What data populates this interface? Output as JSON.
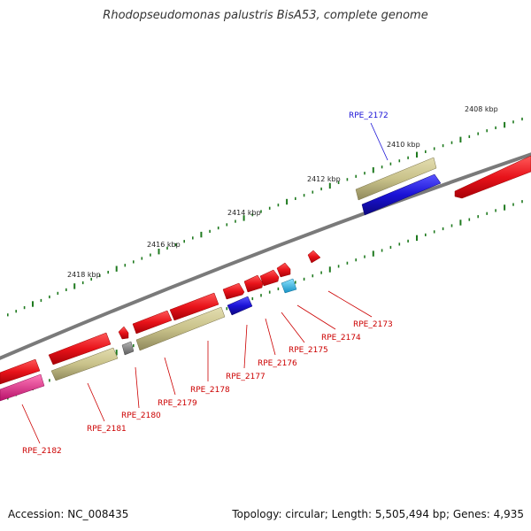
{
  "title": "Rhodopseudomonas palustris BisA53, complete genome",
  "footer": {
    "accession": "Accession: NC_008435",
    "topology": "Topology: circular; Length: 5,505,494 bp; Genes: 4,935"
  },
  "colors": {
    "backbone": "#7a7a7a",
    "tick": "#1f7a1f",
    "cds_forward": "#e8131a",
    "cds_reverse_blue": "#1a12d6",
    "tan": "#c9c28a",
    "gray_block": "#8a8a8a",
    "cyan": "#2bbde8",
    "magenta": "#e8358f",
    "label_red": "#cc0000",
    "label_blue": "#1a12d6"
  },
  "scale_labels": [
    "2408 kbp",
    "2410 kbp",
    "2412 kbp",
    "2414 kbp",
    "2416 kbp",
    "2418 kbp"
  ],
  "gene_labels": [
    {
      "text": "RPE_2172",
      "color": "blue"
    },
    {
      "text": "RPE_2173",
      "color": "red"
    },
    {
      "text": "RPE_2174",
      "color": "red"
    },
    {
      "text": "RPE_2175",
      "color": "red"
    },
    {
      "text": "RPE_2176",
      "color": "red"
    },
    {
      "text": "RPE_2177",
      "color": "red"
    },
    {
      "text": "RPE_2178",
      "color": "red"
    },
    {
      "text": "RPE_2179",
      "color": "red"
    },
    {
      "text": "RPE_2180",
      "color": "red"
    },
    {
      "text": "RPE_2181",
      "color": "red"
    },
    {
      "text": "RPE_2182",
      "color": "red"
    }
  ]
}
